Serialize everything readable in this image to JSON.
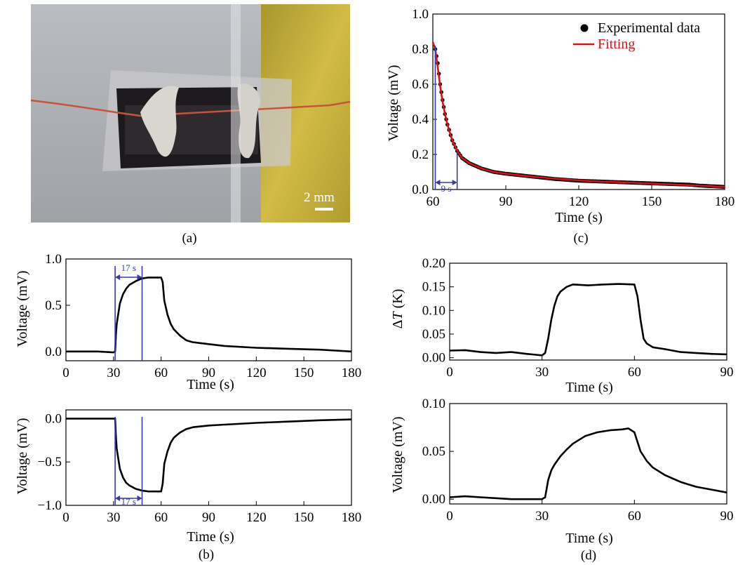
{
  "panel_labels": {
    "a": "(a)",
    "b": "(b)",
    "c": "(c)",
    "d": "(d)"
  },
  "photo": {
    "scale_label": "2 mm"
  },
  "colors": {
    "axis": "#000000",
    "data": "#000000",
    "fit": "#d9101a",
    "marker": "#3a3aa8",
    "legend_fit_text": "#d9101a"
  },
  "chart_data": [
    {
      "id": "c",
      "type": "scatter",
      "xlabel": "Time (s)",
      "ylabel": "Voltage (mV)",
      "xlim": [
        60,
        180
      ],
      "ylim": [
        0,
        1.0
      ],
      "xticks": [
        "60",
        "90",
        "120",
        "150",
        "180"
      ],
      "yticks": [
        "0.0",
        "0.2",
        "0.4",
        "0.6",
        "0.8",
        "1.0"
      ],
      "legend": {
        "placement": "top-right",
        "entries": [
          "Experimental data",
          "Fitting"
        ]
      },
      "annotation": {
        "text": "9 s",
        "x_start": 61,
        "x_end": 70
      },
      "series": [
        {
          "name": "Experimental data",
          "x": [
            61,
            62,
            63,
            64,
            65,
            66,
            68,
            70,
            72,
            75,
            80,
            85,
            90,
            100,
            110,
            120,
            130,
            140,
            150,
            160,
            165,
            170,
            180
          ],
          "values": [
            0.8,
            0.72,
            0.6,
            0.51,
            0.43,
            0.37,
            0.28,
            0.22,
            0.18,
            0.15,
            0.12,
            0.1,
            0.09,
            0.075,
            0.06,
            0.05,
            0.045,
            0.04,
            0.035,
            0.03,
            0.028,
            0.022,
            0.015
          ]
        },
        {
          "name": "Fitting",
          "x": [
            60,
            61,
            62,
            63,
            64,
            65,
            66,
            68,
            70,
            72,
            75,
            80,
            85,
            90,
            100,
            110,
            120,
            130,
            140,
            150,
            160,
            170,
            180
          ],
          "values": [
            0.84,
            0.8,
            0.7,
            0.59,
            0.5,
            0.43,
            0.37,
            0.28,
            0.22,
            0.18,
            0.15,
            0.12,
            0.1,
            0.09,
            0.075,
            0.062,
            0.052,
            0.045,
            0.04,
            0.034,
            0.028,
            0.022,
            0.015
          ]
        }
      ]
    },
    {
      "id": "b1",
      "type": "line",
      "xlabel": "Time (s)",
      "ylabel": "Voltage (mV)",
      "xlim": [
        0,
        180
      ],
      "ylim": [
        -0.1,
        1.0
      ],
      "xticks": [
        "0",
        "30",
        "60",
        "90",
        "120",
        "150",
        "180"
      ],
      "yticks": [
        "0.0",
        "0.5",
        "1.0"
      ],
      "annotation": {
        "text": "17 s",
        "x_start": 31,
        "x_end": 48
      },
      "series": [
        {
          "x": [
            0,
            20,
            30,
            31,
            31.5,
            32,
            34,
            36,
            38,
            40,
            44,
            48,
            52,
            56,
            60,
            61,
            62,
            64,
            66,
            68,
            72,
            76,
            80,
            90,
            100,
            120,
            140,
            160,
            170,
            180
          ],
          "values": [
            0.0,
            0.0,
            -0.01,
            0.0,
            0.18,
            0.3,
            0.52,
            0.62,
            0.68,
            0.72,
            0.76,
            0.79,
            0.8,
            0.8,
            0.8,
            0.75,
            0.55,
            0.4,
            0.3,
            0.24,
            0.17,
            0.12,
            0.1,
            0.08,
            0.06,
            0.04,
            0.03,
            0.02,
            0.01,
            0.0
          ]
        }
      ]
    },
    {
      "id": "b2",
      "type": "line",
      "xlabel": "Time (s)",
      "ylabel": "Voltage (mV)",
      "xlim": [
        0,
        180
      ],
      "ylim": [
        -1.0,
        0.1
      ],
      "xticks": [
        "0",
        "30",
        "60",
        "90",
        "120",
        "150",
        "180"
      ],
      "yticks": [
        "0.0",
        "−0.5",
        "−1.0"
      ],
      "annotation": {
        "text": "17 s",
        "x_start": 31,
        "x_end": 48
      },
      "series": [
        {
          "x": [
            0,
            20,
            30,
            31,
            31.5,
            32,
            34,
            36,
            38,
            40,
            44,
            48,
            52,
            56,
            60,
            61,
            62,
            64,
            66,
            68,
            72,
            76,
            80,
            90,
            100,
            120,
            140,
            160,
            170,
            180
          ],
          "values": [
            0.0,
            0.0,
            0.0,
            0.0,
            -0.2,
            -0.35,
            -0.58,
            -0.68,
            -0.74,
            -0.77,
            -0.81,
            -0.83,
            -0.84,
            -0.84,
            -0.84,
            -0.75,
            -0.52,
            -0.38,
            -0.28,
            -0.22,
            -0.16,
            -0.12,
            -0.1,
            -0.08,
            -0.07,
            -0.05,
            -0.035,
            -0.02,
            -0.015,
            -0.01
          ]
        }
      ]
    },
    {
      "id": "d1",
      "type": "line",
      "xlabel": "Time (s)",
      "ylabel_prefix": "Δ",
      "ylabel_italic": "T",
      "ylabel_suffix": " (K)",
      "xlim": [
        0,
        90
      ],
      "ylim": [
        -0.005,
        0.2
      ],
      "xticks": [
        "0",
        "30",
        "60",
        "90"
      ],
      "yticks": [
        "0.00",
        "0.05",
        "0.10",
        "0.15",
        "0.20"
      ],
      "series": [
        {
          "x": [
            0,
            5,
            10,
            15,
            20,
            25,
            30,
            31,
            32,
            33,
            34,
            35,
            36,
            38,
            40,
            45,
            50,
            55,
            60,
            61,
            62,
            63,
            64,
            66,
            70,
            75,
            80,
            85,
            90
          ],
          "values": [
            0.015,
            0.016,
            0.012,
            0.01,
            0.012,
            0.008,
            0.005,
            0.01,
            0.04,
            0.08,
            0.11,
            0.13,
            0.14,
            0.15,
            0.155,
            0.153,
            0.155,
            0.156,
            0.155,
            0.13,
            0.08,
            0.04,
            0.03,
            0.022,
            0.018,
            0.012,
            0.01,
            0.008,
            0.007
          ]
        }
      ]
    },
    {
      "id": "d2",
      "type": "line",
      "xlabel": "Time (s)",
      "ylabel": "Voltage (mV)",
      "xlim": [
        0,
        90
      ],
      "ylim": [
        -0.005,
        0.1
      ],
      "xticks": [
        "0",
        "30",
        "60",
        "90"
      ],
      "yticks": [
        "0.00",
        "0.05",
        "0.10"
      ],
      "series": [
        {
          "x": [
            0,
            5,
            10,
            15,
            20,
            25,
            30,
            31,
            32,
            33,
            34,
            36,
            38,
            40,
            44,
            48,
            52,
            56,
            58,
            60,
            61,
            62,
            64,
            66,
            70,
            75,
            80,
            85,
            90
          ],
          "values": [
            0.002,
            0.003,
            0.002,
            0.001,
            0.0,
            0.0,
            0.0,
            0.002,
            0.02,
            0.03,
            0.036,
            0.045,
            0.052,
            0.058,
            0.066,
            0.07,
            0.072,
            0.073,
            0.074,
            0.07,
            0.06,
            0.05,
            0.04,
            0.033,
            0.025,
            0.018,
            0.013,
            0.01,
            0.007
          ]
        }
      ]
    }
  ]
}
